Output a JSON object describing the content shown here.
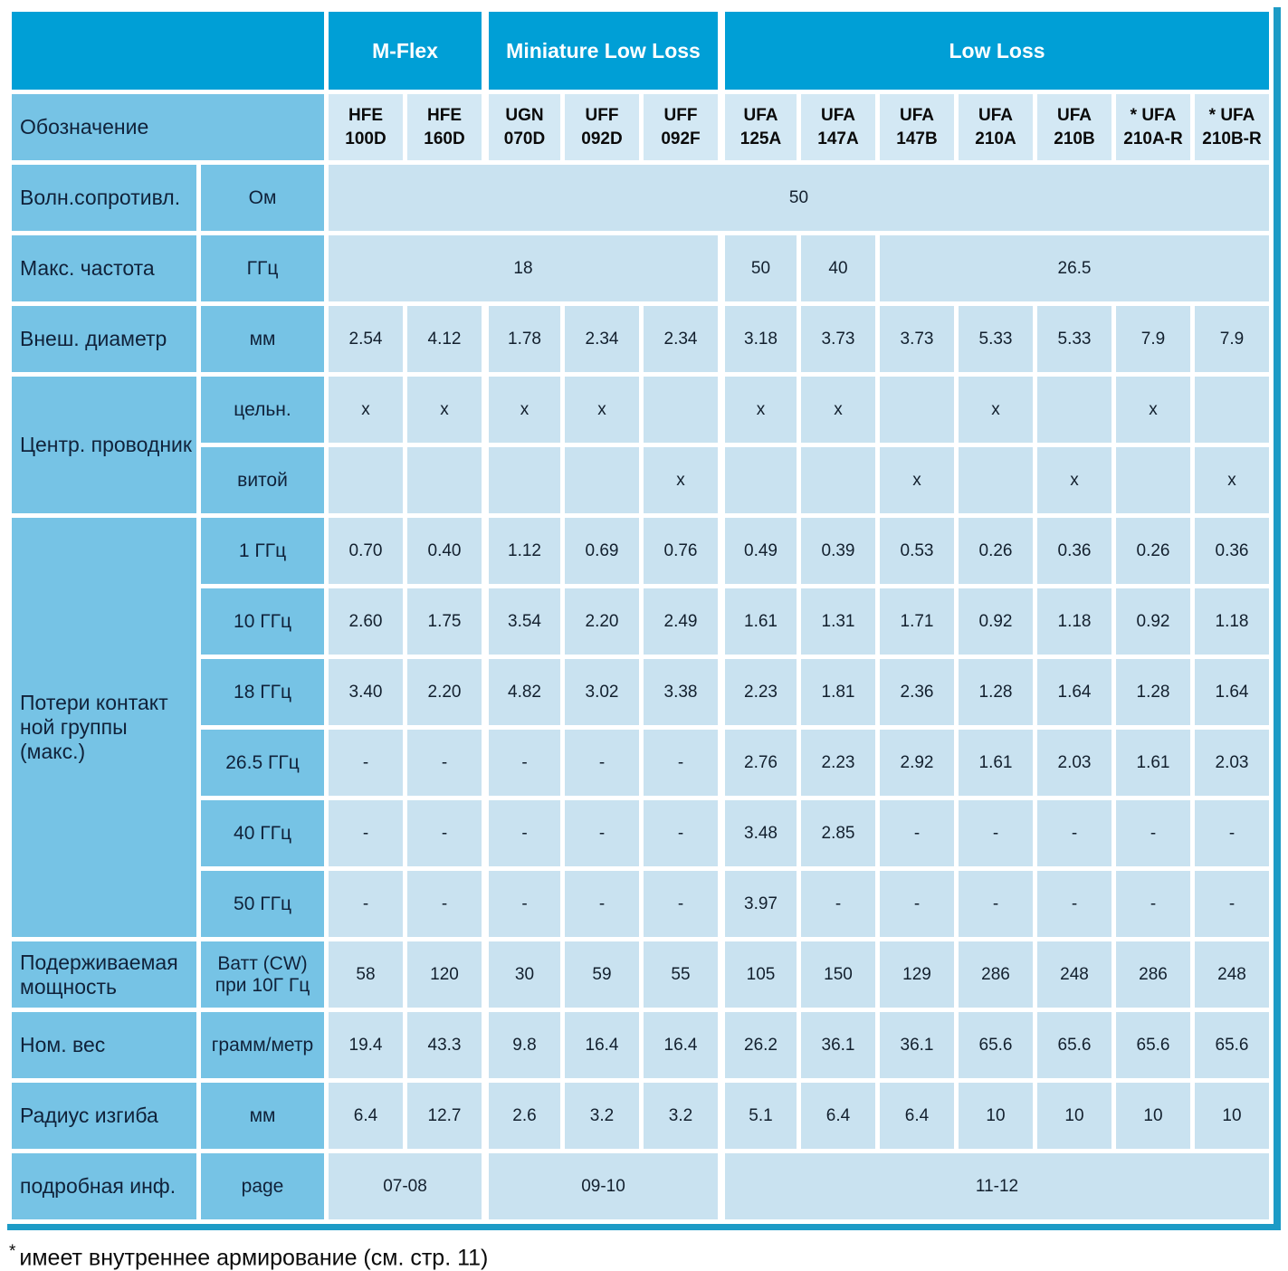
{
  "colors": {
    "header_blue": "#009fd6",
    "band_blue": "#76c3e5",
    "cell_blue": "#c9e2f0",
    "designation_cell_blue": "#d3e8f4",
    "border_teal": "#1d9bc6",
    "grid_white": "#ffffff"
  },
  "footnote": {
    "star": "*",
    "text": "имеет внутреннее армирование (см. стр. 11)"
  },
  "table": {
    "designation_label": "Обозначение",
    "groups": [
      {
        "label": "M-Flex",
        "cols": 2
      },
      {
        "label": "Miniature Low Loss",
        "cols": 3
      },
      {
        "label": "Low Loss",
        "cols": 7
      }
    ],
    "models": [
      "HFE 100D",
      "HFE 160D",
      "UGN 070D",
      "UFF 092D",
      "UFF 092F",
      "UFA 125A",
      "UFA 147A",
      "UFA 147B",
      "UFA 210A",
      "UFA 210B",
      "* UFA 210A-R",
      "* UFA 210B-R"
    ],
    "rows": [
      {
        "label": "Волн.сопротивл.",
        "unit": "Ом",
        "cells": [
          {
            "v": "50",
            "span": 12
          }
        ]
      },
      {
        "label": "Макс. частота",
        "unit": "ГГц",
        "cells": [
          {
            "v": "18",
            "span": 5
          },
          {
            "v": "50"
          },
          {
            "v": "40"
          },
          {
            "v": "26.5",
            "span": 5
          }
        ]
      },
      {
        "label": "Внеш. диаметр",
        "unit": "мм",
        "cells": [
          {
            "v": "2.54"
          },
          {
            "v": "4.12"
          },
          {
            "v": "1.78"
          },
          {
            "v": "2.34"
          },
          {
            "v": "2.34"
          },
          {
            "v": "3.18"
          },
          {
            "v": "3.73"
          },
          {
            "v": "3.73"
          },
          {
            "v": "5.33"
          },
          {
            "v": "5.33"
          },
          {
            "v": "7.9"
          },
          {
            "v": "7.9"
          }
        ]
      },
      {
        "label": "Центр. проводник",
        "label_rows": 2,
        "unit": "цельн.",
        "cells": [
          {
            "v": "x"
          },
          {
            "v": "x"
          },
          {
            "v": "x"
          },
          {
            "v": "x"
          },
          {
            "v": ""
          },
          {
            "v": "x"
          },
          {
            "v": "x"
          },
          {
            "v": ""
          },
          {
            "v": "x"
          },
          {
            "v": ""
          },
          {
            "v": "x"
          },
          {
            "v": ""
          }
        ]
      },
      {
        "unit": "витой",
        "cells": [
          {
            "v": ""
          },
          {
            "v": ""
          },
          {
            "v": ""
          },
          {
            "v": ""
          },
          {
            "v": "x"
          },
          {
            "v": ""
          },
          {
            "v": ""
          },
          {
            "v": "x"
          },
          {
            "v": ""
          },
          {
            "v": "x"
          },
          {
            "v": ""
          },
          {
            "v": "x"
          }
        ]
      },
      {
        "label": "Потери контакт ной группы (макс.)",
        "label_rows": 6,
        "unit": "1 ГГц",
        "cells": [
          {
            "v": "0.70"
          },
          {
            "v": "0.40"
          },
          {
            "v": "1.12"
          },
          {
            "v": "0.69"
          },
          {
            "v": "0.76"
          },
          {
            "v": "0.49"
          },
          {
            "v": "0.39"
          },
          {
            "v": "0.53"
          },
          {
            "v": "0.26"
          },
          {
            "v": "0.36"
          },
          {
            "v": "0.26"
          },
          {
            "v": "0.36"
          }
        ]
      },
      {
        "unit": "10 ГГц",
        "cells": [
          {
            "v": "2.60"
          },
          {
            "v": "1.75"
          },
          {
            "v": "3.54"
          },
          {
            "v": "2.20"
          },
          {
            "v": "2.49"
          },
          {
            "v": "1.61"
          },
          {
            "v": "1.31"
          },
          {
            "v": "1.71"
          },
          {
            "v": "0.92"
          },
          {
            "v": "1.18"
          },
          {
            "v": "0.92"
          },
          {
            "v": "1.18"
          }
        ]
      },
      {
        "unit": "18 ГГц",
        "cells": [
          {
            "v": "3.40"
          },
          {
            "v": "2.20"
          },
          {
            "v": "4.82"
          },
          {
            "v": "3.02"
          },
          {
            "v": "3.38"
          },
          {
            "v": "2.23"
          },
          {
            "v": "1.81"
          },
          {
            "v": "2.36"
          },
          {
            "v": "1.28"
          },
          {
            "v": "1.64"
          },
          {
            "v": "1.28"
          },
          {
            "v": "1.64"
          }
        ]
      },
      {
        "unit": "26.5 ГГц",
        "cells": [
          {
            "v": "-"
          },
          {
            "v": "-"
          },
          {
            "v": "-"
          },
          {
            "v": "-"
          },
          {
            "v": "-"
          },
          {
            "v": "2.76"
          },
          {
            "v": "2.23"
          },
          {
            "v": "2.92"
          },
          {
            "v": "1.61"
          },
          {
            "v": "2.03"
          },
          {
            "v": "1.61"
          },
          {
            "v": "2.03"
          }
        ]
      },
      {
        "unit": "40 ГГц",
        "cells": [
          {
            "v": "-"
          },
          {
            "v": "-"
          },
          {
            "v": "-"
          },
          {
            "v": "-"
          },
          {
            "v": "-"
          },
          {
            "v": "3.48"
          },
          {
            "v": "2.85"
          },
          {
            "v": "-"
          },
          {
            "v": "-"
          },
          {
            "v": "-"
          },
          {
            "v": "-"
          },
          {
            "v": "-"
          }
        ]
      },
      {
        "unit": "50 ГГц",
        "cells": [
          {
            "v": "-"
          },
          {
            "v": "-"
          },
          {
            "v": "-"
          },
          {
            "v": "-"
          },
          {
            "v": "-"
          },
          {
            "v": "3.97"
          },
          {
            "v": "-"
          },
          {
            "v": "-"
          },
          {
            "v": "-"
          },
          {
            "v": "-"
          },
          {
            "v": "-"
          },
          {
            "v": "-"
          }
        ]
      },
      {
        "label": "Подерживаемая мощность",
        "unit": "Ватт (CW) при 10Г Гц",
        "cells": [
          {
            "v": "58"
          },
          {
            "v": "120"
          },
          {
            "v": "30"
          },
          {
            "v": "59"
          },
          {
            "v": "55"
          },
          {
            "v": "105"
          },
          {
            "v": "150"
          },
          {
            "v": "129"
          },
          {
            "v": "286"
          },
          {
            "v": "248"
          },
          {
            "v": "286"
          },
          {
            "v": "248"
          }
        ]
      },
      {
        "label": "Ном. вес",
        "unit": "грамм/метр",
        "cells": [
          {
            "v": "19.4"
          },
          {
            "v": "43.3"
          },
          {
            "v": "9.8"
          },
          {
            "v": "16.4"
          },
          {
            "v": "16.4"
          },
          {
            "v": "26.2"
          },
          {
            "v": "36.1"
          },
          {
            "v": "36.1"
          },
          {
            "v": "65.6"
          },
          {
            "v": "65.6"
          },
          {
            "v": "65.6"
          },
          {
            "v": "65.6"
          }
        ]
      },
      {
        "label": "Радиус изгиба",
        "unit": "мм",
        "cells": [
          {
            "v": "6.4"
          },
          {
            "v": "12.7"
          },
          {
            "v": "2.6"
          },
          {
            "v": "3.2"
          },
          {
            "v": "3.2"
          },
          {
            "v": "5.1"
          },
          {
            "v": "6.4"
          },
          {
            "v": "6.4"
          },
          {
            "v": "10"
          },
          {
            "v": "10"
          },
          {
            "v": "10"
          },
          {
            "v": "10"
          }
        ]
      },
      {
        "label": "подробная инф.",
        "unit": "page",
        "cells": [
          {
            "v": "07-08",
            "span": 2
          },
          {
            "v": "09-10",
            "span": 3
          },
          {
            "v": "11-12",
            "span": 7
          }
        ]
      }
    ]
  }
}
